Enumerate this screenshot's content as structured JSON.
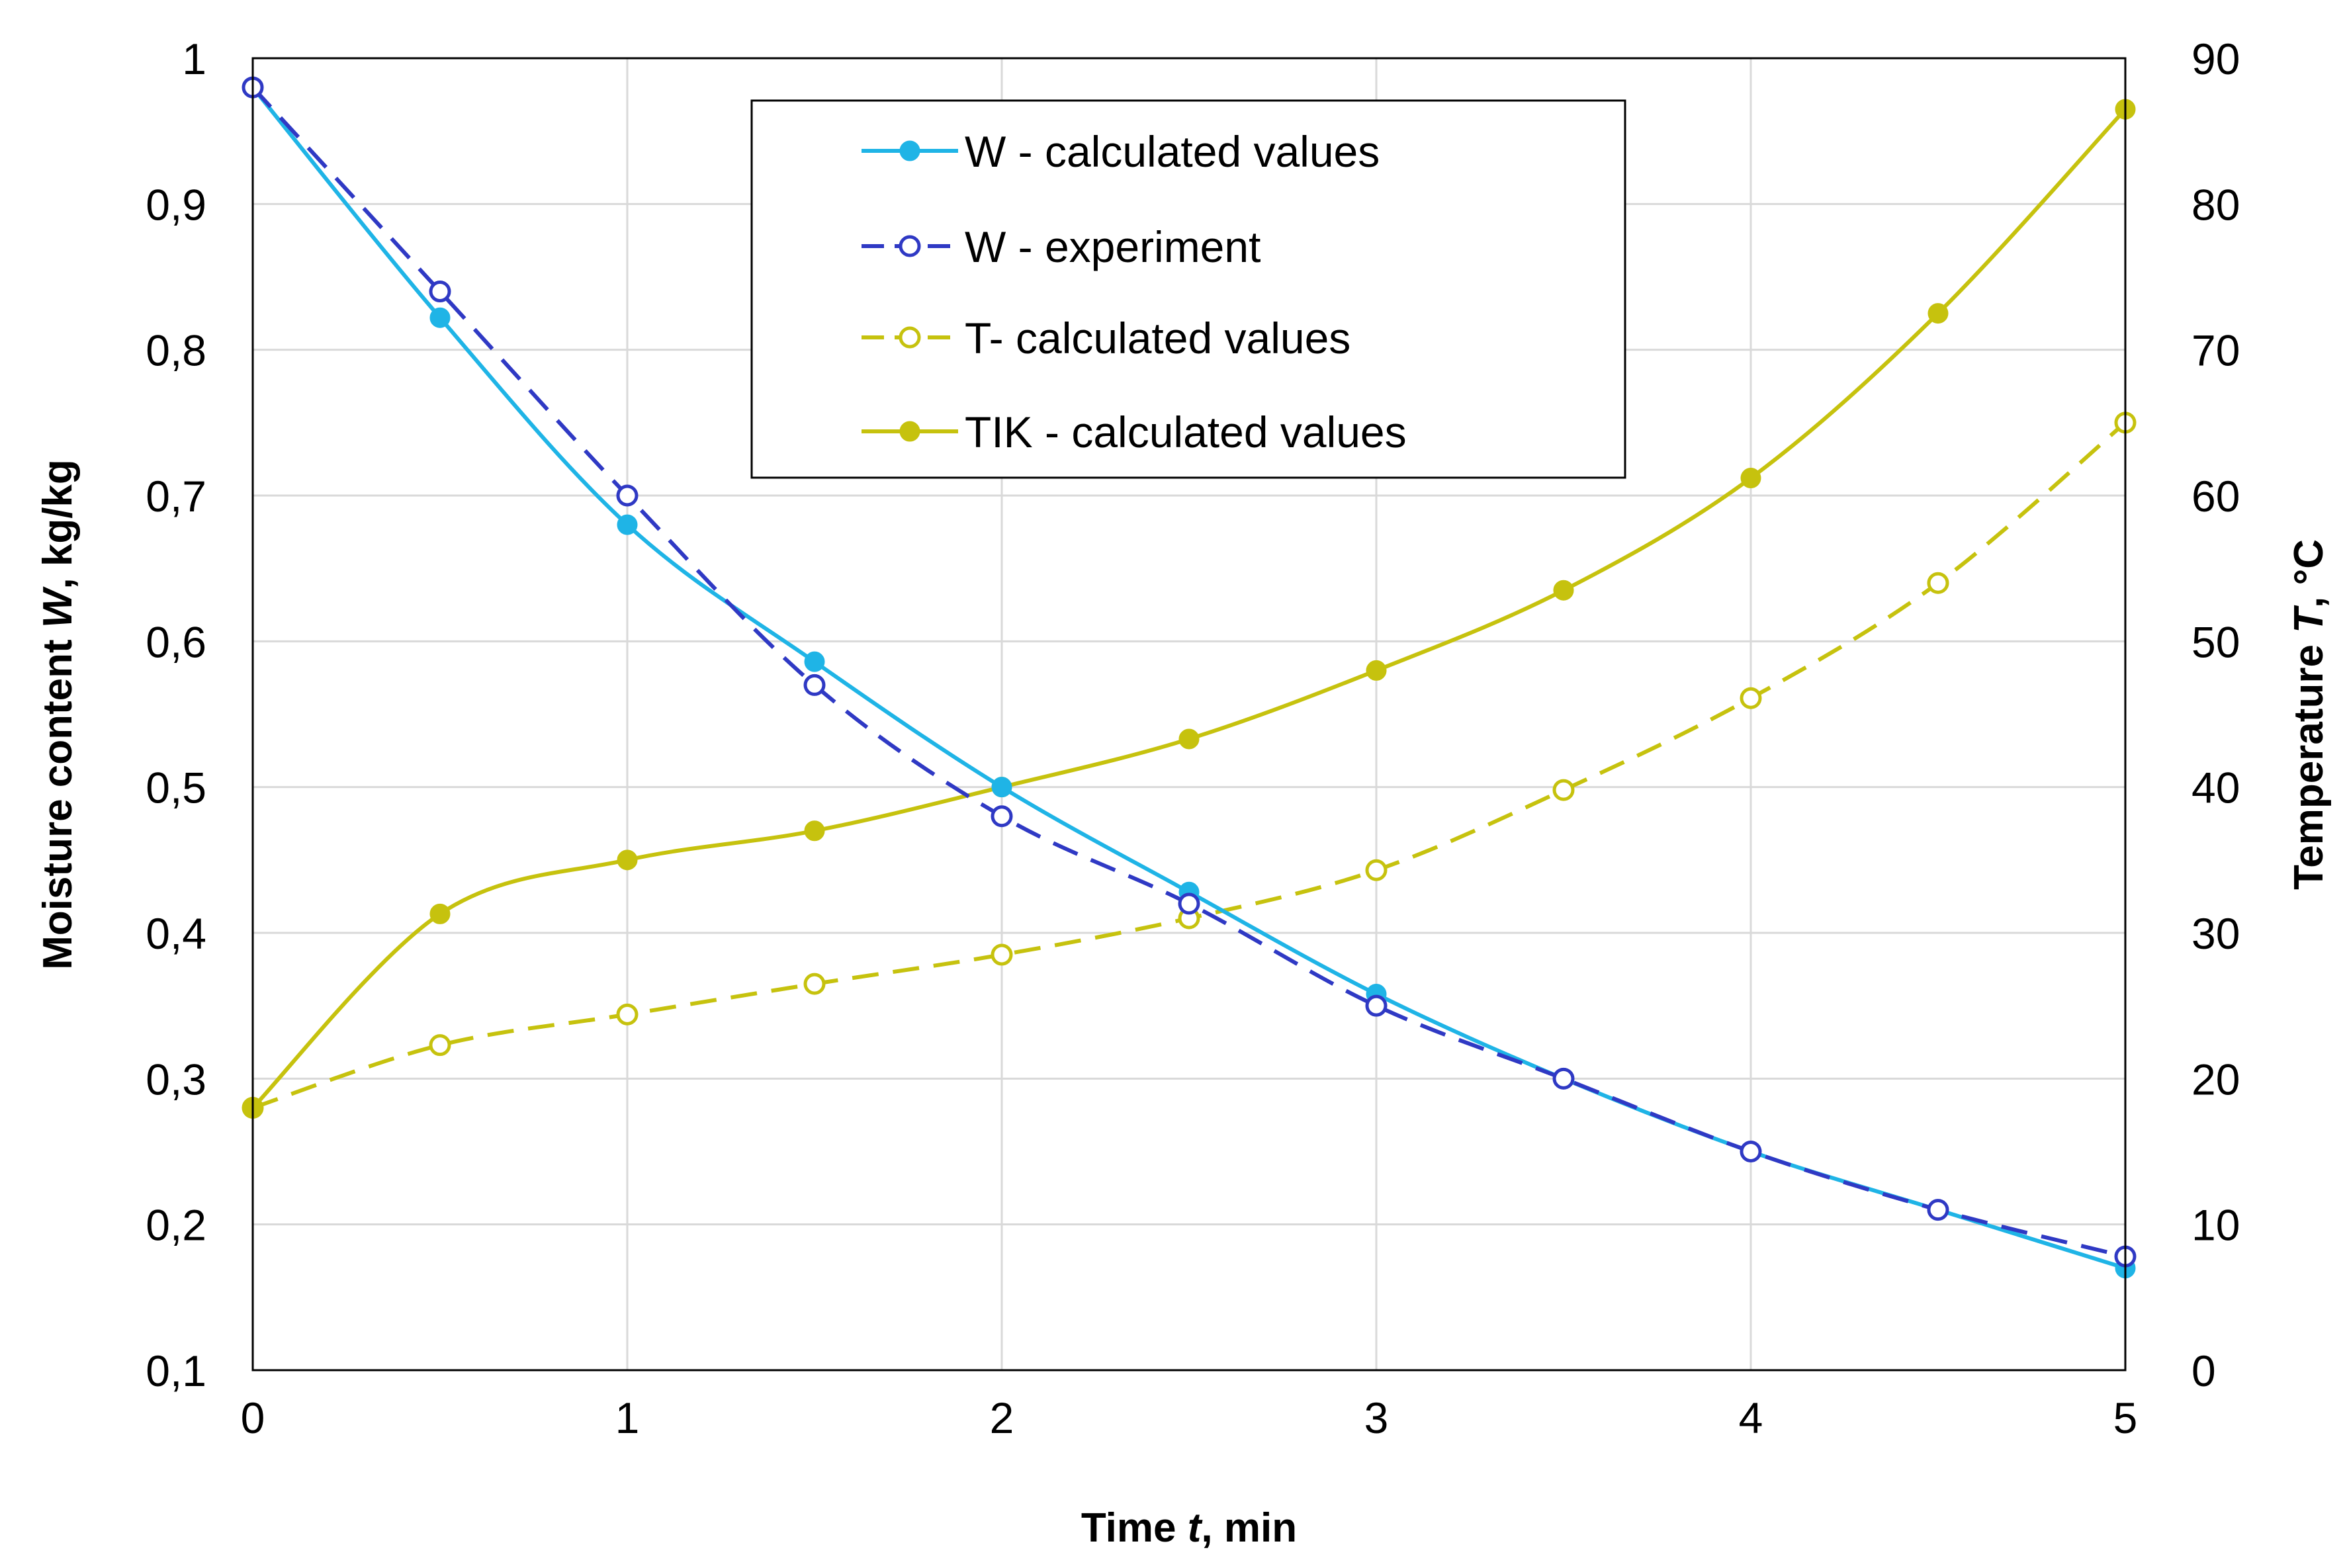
{
  "chart_data": {
    "type": "line",
    "title": "",
    "x": [
      0,
      0.5,
      1,
      1.5,
      2,
      2.5,
      3,
      3.5,
      4,
      4.5,
      5
    ],
    "xlabel": {
      "before": "Time ",
      "var": "t",
      "after": ", min"
    },
    "ylabel_left": {
      "before": "Moisture content ",
      "var": "W",
      "after": ", kg/kg"
    },
    "ylabel_right": {
      "before": "Temperature ",
      "var": "T",
      "after": ", °C"
    },
    "xlim": [
      0,
      5
    ],
    "ylim_left": [
      0.1,
      1
    ],
    "ylim_right": [
      0,
      90
    ],
    "xticks": [
      0,
      1,
      2,
      3,
      4,
      5
    ],
    "xtick_labels": [
      "0",
      "1",
      "2",
      "3",
      "4",
      "5"
    ],
    "yticks_left": [
      0.1,
      0.2,
      0.3,
      0.4,
      0.5,
      0.6,
      0.7,
      0.8,
      0.9,
      1
    ],
    "ytick_labels_left": [
      "0,1",
      "0,2",
      "0,3",
      "0,4",
      "0,5",
      "0,6",
      "0,7",
      "0,8",
      "0,9",
      "1"
    ],
    "yticks_right": [
      0,
      10,
      20,
      30,
      40,
      50,
      60,
      70,
      80,
      90
    ],
    "ytick_labels_right": [
      "0",
      "10",
      "20",
      "30",
      "40",
      "50",
      "60",
      "70",
      "80",
      "90"
    ],
    "grid": true,
    "legend_position": "top-center",
    "series": [
      {
        "name": "W - calculated values",
        "axis": "left",
        "color": "#1fb4e6",
        "line": "solid",
        "marker": "filled",
        "values": [
          0.98,
          0.822,
          0.68,
          0.586,
          0.5,
          0.428,
          0.358,
          0.3,
          0.25,
          0.21,
          0.17
        ]
      },
      {
        "name": "W - experiment",
        "axis": "left",
        "color": "#2f39c4",
        "line": "dashed",
        "marker": "open",
        "values": [
          0.98,
          0.84,
          0.7,
          0.57,
          0.48,
          0.42,
          0.35,
          0.3,
          0.25,
          0.21,
          0.178
        ]
      },
      {
        "name": "T- calculated values",
        "axis": "right",
        "color": "#c6c20e",
        "line": "dashed",
        "marker": "open",
        "values": [
          18,
          22.3,
          24.4,
          26.5,
          28.5,
          31,
          34.3,
          39.8,
          46.1,
          54,
          65
        ]
      },
      {
        "name": "TIK - calculated values",
        "axis": "right",
        "color": "#c6c20e",
        "line": "solid",
        "marker": "filled",
        "values": [
          18,
          31.3,
          35,
          37,
          40,
          43.3,
          48,
          53.5,
          61.2,
          72.5,
          86.5
        ]
      }
    ],
    "legend_order": [
      0,
      1,
      2,
      3
    ]
  }
}
